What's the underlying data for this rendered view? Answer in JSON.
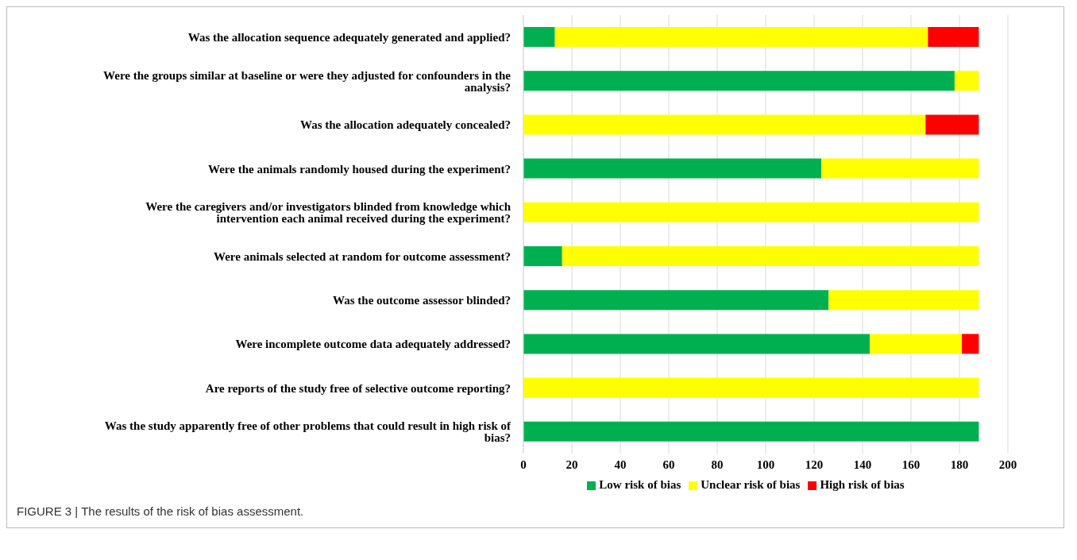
{
  "chart_data": {
    "type": "bar",
    "orientation": "horizontal",
    "stacked": true,
    "categories": [
      "Was the allocation sequence adequately generated and applied?",
      "Were the groups similar at baseline or were they adjusted for confounders in the analysis?",
      "Was the allocation adequately concealed?",
      "Were the animals randomly housed during the experiment?",
      "Were the caregivers and/or investigators blinded from knowledge which intervention each animal received during the experiment?",
      "Were animals selected at random for outcome assessment?",
      "Was the outcome assessor blinded?",
      "Were incomplete outcome data adequately addressed?",
      "Are reports of the study free of selective outcome reporting?",
      "Was the study apparently free of other problems that could result in high risk of bias?"
    ],
    "series": [
      {
        "name": "Low risk of bias",
        "color": "#00b050",
        "values": [
          13,
          178,
          0,
          123,
          0,
          16,
          126,
          143,
          0,
          188
        ]
      },
      {
        "name": "Unclear risk of bias",
        "color": "#ffff00",
        "values": [
          154,
          10,
          166,
          65,
          188,
          172,
          62,
          38,
          188,
          0
        ]
      },
      {
        "name": "High risk of bias",
        "color": "#ff0000",
        "values": [
          21,
          0,
          22,
          0,
          0,
          0,
          0,
          7,
          0,
          0
        ]
      }
    ],
    "xlim": [
      0,
      200
    ],
    "xticks": [
      0,
      20,
      40,
      60,
      80,
      100,
      120,
      140,
      160,
      180,
      200
    ],
    "grid": "x",
    "legend": "bottom",
    "annotations": [
      "FIGURE 3 | The results of the risk of bias assessment."
    ]
  }
}
